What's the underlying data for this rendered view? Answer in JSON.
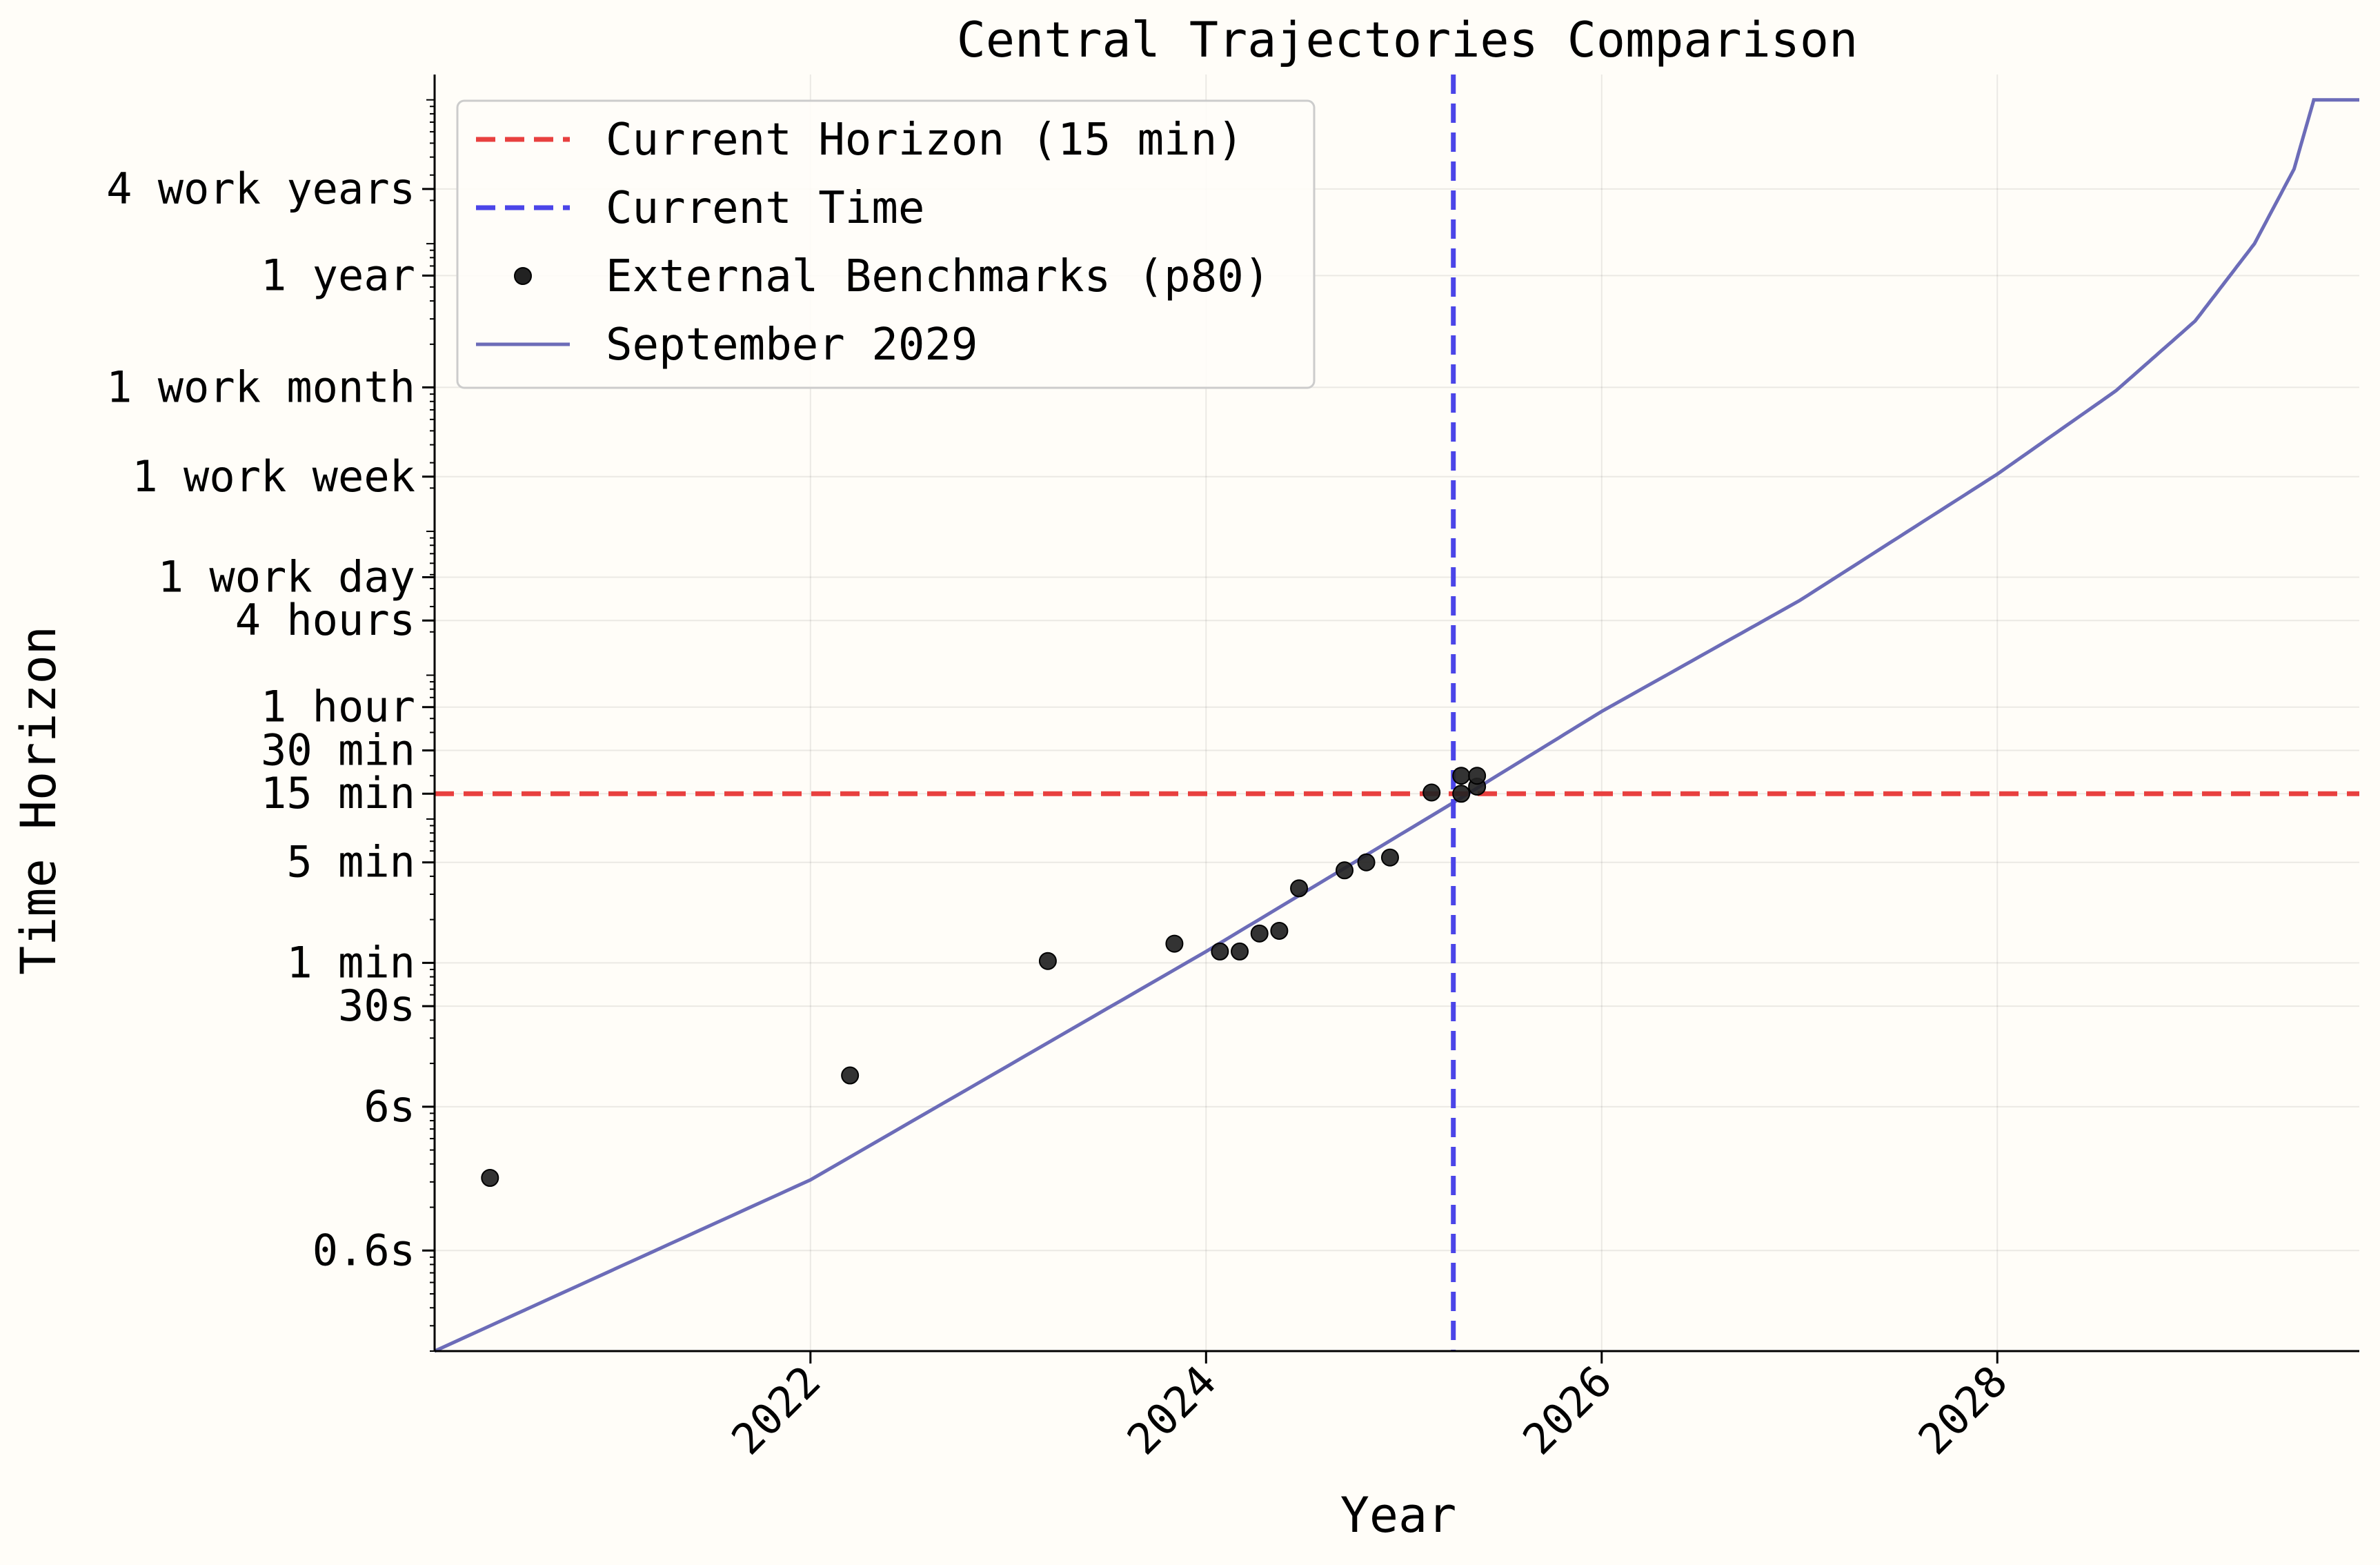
{
  "chart_data": {
    "type": "line",
    "title": "Central Trajectories Comparison",
    "xlabel": "Year",
    "ylabel": "Time Horizon",
    "y_scale": "log",
    "x_unit": "year",
    "y_unit": "minutes",
    "xlim": [
      2020.1,
      2029.83
    ],
    "ylim": [
      0.002,
      1500000
    ],
    "grid": true,
    "legend_position": "top-left",
    "x_ticks": [
      {
        "value": 2022,
        "label": "2022"
      },
      {
        "value": 2024,
        "label": "2024"
      },
      {
        "value": 2026,
        "label": "2026"
      },
      {
        "value": 2028,
        "label": "2028"
      }
    ],
    "y_ticks": [
      {
        "value": 0.01,
        "label": "0.6s"
      },
      {
        "value": 0.1,
        "label": "6s"
      },
      {
        "value": 0.5,
        "label": "30s"
      },
      {
        "value": 1,
        "label": "1 min"
      },
      {
        "value": 5,
        "label": "5 min"
      },
      {
        "value": 15,
        "label": "15 min"
      },
      {
        "value": 30,
        "label": "30 min"
      },
      {
        "value": 60,
        "label": "1 hour"
      },
      {
        "value": 240,
        "label": "4 hours"
      },
      {
        "value": 480,
        "label": "1 work day"
      },
      {
        "value": 2400,
        "label": "1 work week"
      },
      {
        "value": 10020,
        "label": "1 work month"
      },
      {
        "value": 60000,
        "label": "1 year"
      },
      {
        "value": 240000,
        "label": "4 work years"
      }
    ],
    "reference_lines": [
      {
        "name": "Current Horizon (15 min)",
        "orientation": "horizontal",
        "value": 15,
        "color": "#e8403f",
        "style": "dashed"
      },
      {
        "name": "Current Time",
        "orientation": "vertical",
        "value": 2025.25,
        "color": "#4b45e8",
        "style": "dashed"
      }
    ],
    "series": [
      {
        "name": "External Benchmarks (p80)",
        "kind": "scatter",
        "color": "#222222",
        "points": [
          {
            "x": 2020.38,
            "y": 0.032
          },
          {
            "x": 2022.2,
            "y": 0.165
          },
          {
            "x": 2023.2,
            "y": 1.03
          },
          {
            "x": 2023.84,
            "y": 1.36
          },
          {
            "x": 2024.07,
            "y": 1.2
          },
          {
            "x": 2024.17,
            "y": 1.2
          },
          {
            "x": 2024.27,
            "y": 1.6
          },
          {
            "x": 2024.37,
            "y": 1.67
          },
          {
            "x": 2024.47,
            "y": 3.3
          },
          {
            "x": 2024.7,
            "y": 4.4
          },
          {
            "x": 2024.81,
            "y": 5.0
          },
          {
            "x": 2024.93,
            "y": 5.4
          },
          {
            "x": 2025.14,
            "y": 15.3
          },
          {
            "x": 2025.29,
            "y": 15.0
          },
          {
            "x": 2025.29,
            "y": 20.0
          },
          {
            "x": 2025.37,
            "y": 16.8
          },
          {
            "x": 2025.37,
            "y": 20.0
          }
        ]
      },
      {
        "name": "September 2029",
        "kind": "line",
        "color": "#6c6cb8",
        "points": [
          {
            "x": 2020.1,
            "y": 0.002
          },
          {
            "x": 2022.0,
            "y": 0.031
          },
          {
            "x": 2024.0,
            "y": 1.2
          },
          {
            "x": 2025.25,
            "y": 13
          },
          {
            "x": 2026.0,
            "y": 56
          },
          {
            "x": 2027.0,
            "y": 330
          },
          {
            "x": 2028.0,
            "y": 2500
          },
          {
            "x": 2028.6,
            "y": 9500
          },
          {
            "x": 2029.0,
            "y": 29000
          },
          {
            "x": 2029.3,
            "y": 100000
          },
          {
            "x": 2029.5,
            "y": 330000
          },
          {
            "x": 2029.6,
            "y": 1000000
          },
          {
            "x": 2029.83,
            "y": 1000000
          }
        ]
      }
    ]
  }
}
